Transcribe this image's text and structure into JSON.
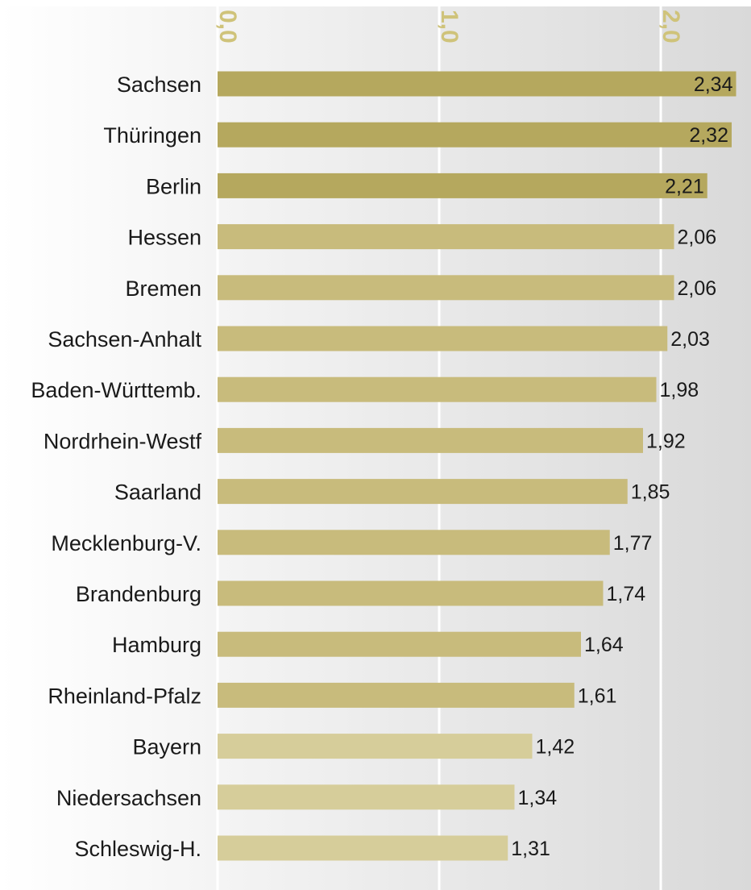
{
  "chart_data": {
    "type": "bar",
    "orientation": "horizontal",
    "title": "",
    "xlabel": "",
    "ylabel": "",
    "xlim": [
      0,
      2.3
    ],
    "x_ticks": [
      {
        "value": 0,
        "label": "0,0"
      },
      {
        "value": 1,
        "label": "1,0"
      },
      {
        "value": 2,
        "label": "2,0"
      }
    ],
    "grid": true,
    "categories": [
      "Sachsen",
      "Thüringen",
      "Berlin",
      "Hessen",
      "Bremen",
      "Sachsen-Anhalt",
      "Baden-Württemb.",
      "Nordrhein-Westf",
      "Saarland",
      "Mecklenburg-V.",
      "Brandenburg",
      "Hamburg",
      "Rheinland-Pfalz",
      "Bayern",
      "Niedersachsen",
      "Schleswig-H."
    ],
    "values": [
      2.34,
      2.32,
      2.21,
      2.06,
      2.06,
      2.03,
      1.98,
      1.92,
      1.85,
      1.77,
      1.74,
      1.64,
      1.61,
      1.42,
      1.34,
      1.31
    ],
    "value_labels": [
      "2,34",
      "2,32",
      "2,21",
      "2,06",
      "2,06",
      "2,03",
      "1,98",
      "1,92",
      "1,85",
      "1,77",
      "1,74",
      "1,64",
      "1,61",
      "1,42",
      "1,34",
      "1,31"
    ],
    "colors": {
      "bar_top": "#b5a85e",
      "bar_mid": "#c8bb7c",
      "bar_low": "#d6cd9a",
      "tick_label": "#cfc37a",
      "gridline": "#ffffff",
      "bg_light": "#f7f7f7",
      "bg_dark": "#d9d9d9"
    }
  }
}
